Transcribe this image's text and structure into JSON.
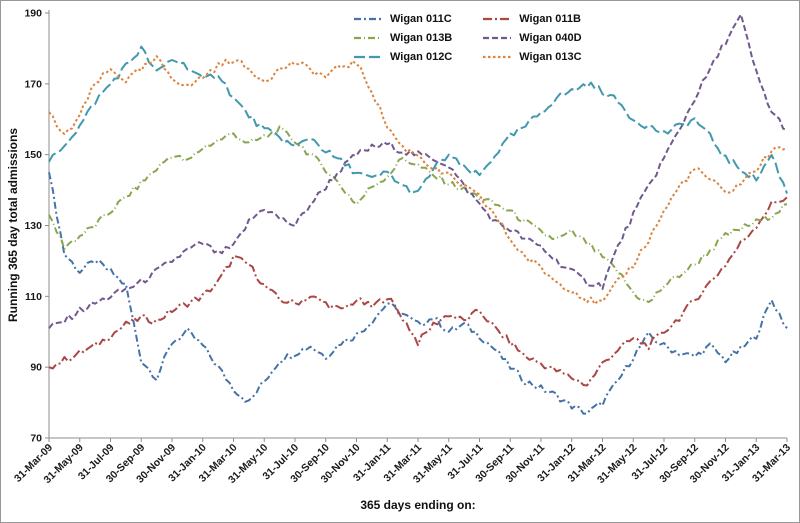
{
  "chart_data": {
    "type": "line",
    "title": "",
    "xlabel": "365 days ending on:",
    "ylabel": "Running 365 day total admissions",
    "ylim": [
      70,
      190
    ],
    "yticks": [
      70,
      90,
      110,
      130,
      150,
      170,
      190
    ],
    "grid": false,
    "legend_position": "top",
    "x_frequency": "monthly, 31-Mar-09 to 31-Mar-13 (labels every 2 months)",
    "x_points_per_tick": 2,
    "x_ticklabels": [
      "31-Mar-09",
      "31-May-09",
      "31-Jul-09",
      "30-Sep-09",
      "30-Nov-09",
      "31-Jan-10",
      "31-Mar-10",
      "31-May-10",
      "31-Jul-10",
      "30-Sep-10",
      "30-Nov-10",
      "31-Jan-11",
      "31-Mar-11",
      "31-May-11",
      "31-Jul-11",
      "30-Sep-11",
      "30-Nov-11",
      "31-Jan-12",
      "31-Mar-12",
      "31-May-12",
      "31-Jul-12",
      "30-Sep-12",
      "30-Nov-12",
      "31-Jan-13",
      "31-Mar-13"
    ],
    "series": [
      {
        "name": "Wigan 011C",
        "color": "#4572A7",
        "dash": "7 3 2 3",
        "values": [
          145,
          122,
          117,
          120,
          117,
          113,
          92,
          87,
          97,
          100,
          96,
          90,
          84,
          80,
          86,
          92,
          94,
          96,
          93,
          97,
          99,
          103,
          108,
          105,
          102,
          104,
          100,
          102,
          99,
          95,
          90,
          86,
          84,
          82,
          79,
          77,
          80,
          86,
          93,
          99,
          96,
          94,
          93,
          96,
          92,
          95,
          99,
          109,
          101
        ]
      },
      {
        "name": "Wigan 011B",
        "color": "#AA4643",
        "dash": "9 3 2 3",
        "values": [
          90,
          92,
          94,
          96,
          99,
          102,
          104,
          103,
          106,
          108,
          110,
          114,
          121,
          119,
          113,
          109,
          108,
          110,
          108,
          106,
          109,
          107,
          110,
          104,
          97,
          102,
          105,
          103,
          106,
          101,
          97,
          93,
          91,
          89,
          87,
          85,
          91,
          95,
          98,
          96,
          100,
          104,
          109,
          114,
          119,
          125,
          130,
          136,
          138
        ]
      },
      {
        "name": "Wigan 013B",
        "color": "#89A54E",
        "dash": "7 3 1 3",
        "values": [
          133,
          124,
          127,
          130,
          134,
          138,
          142,
          146,
          150,
          148,
          152,
          154,
          156,
          153,
          155,
          157,
          154,
          150,
          146,
          141,
          136,
          141,
          144,
          149,
          147,
          144,
          142,
          140,
          138,
          136,
          134,
          131,
          128,
          126,
          128,
          125,
          121,
          117,
          111,
          108,
          113,
          116,
          119,
          123,
          127,
          129,
          131,
          133,
          136
        ]
      },
      {
        "name": "Wigan 040D",
        "color": "#71588F",
        "dash": "6 3",
        "values": [
          101,
          103,
          106,
          108,
          110,
          112,
          114,
          117,
          120,
          123,
          125,
          122,
          124,
          131,
          135,
          132,
          130,
          136,
          141,
          146,
          150,
          152,
          153,
          151,
          150,
          149,
          147,
          141,
          136,
          131,
          129,
          126,
          124,
          120,
          117,
          114,
          113,
          124,
          133,
          141,
          149,
          157,
          166,
          174,
          182,
          189,
          173,
          162,
          157
        ]
      },
      {
        "name": "Wigan 012C",
        "color": "#4198AF",
        "dash": "11 4",
        "values": [
          148,
          153,
          158,
          165,
          170,
          175,
          180,
          173,
          177,
          175,
          171,
          173,
          166,
          161,
          157,
          155,
          152,
          155,
          151,
          148,
          145,
          143,
          145,
          141,
          139,
          146,
          150,
          146,
          144,
          150,
          155,
          158,
          162,
          166,
          168,
          170,
          168,
          165,
          160,
          158,
          156,
          158,
          160,
          155,
          149,
          146,
          143,
          150,
          139
        ]
      },
      {
        "name": "Wigan 013C",
        "color": "#DB843D",
        "dash": "2.5 2.5",
        "values": [
          162,
          155,
          161,
          170,
          174,
          171,
          174,
          177,
          172,
          169,
          172,
          175,
          177,
          174,
          171,
          174,
          176,
          174,
          172,
          175,
          176,
          168,
          158,
          152,
          150,
          146,
          144,
          141,
          138,
          133,
          126,
          121,
          118,
          114,
          112,
          109,
          108,
          114,
          119,
          126,
          134,
          141,
          146,
          143,
          139,
          142,
          146,
          151,
          152
        ]
      }
    ]
  }
}
